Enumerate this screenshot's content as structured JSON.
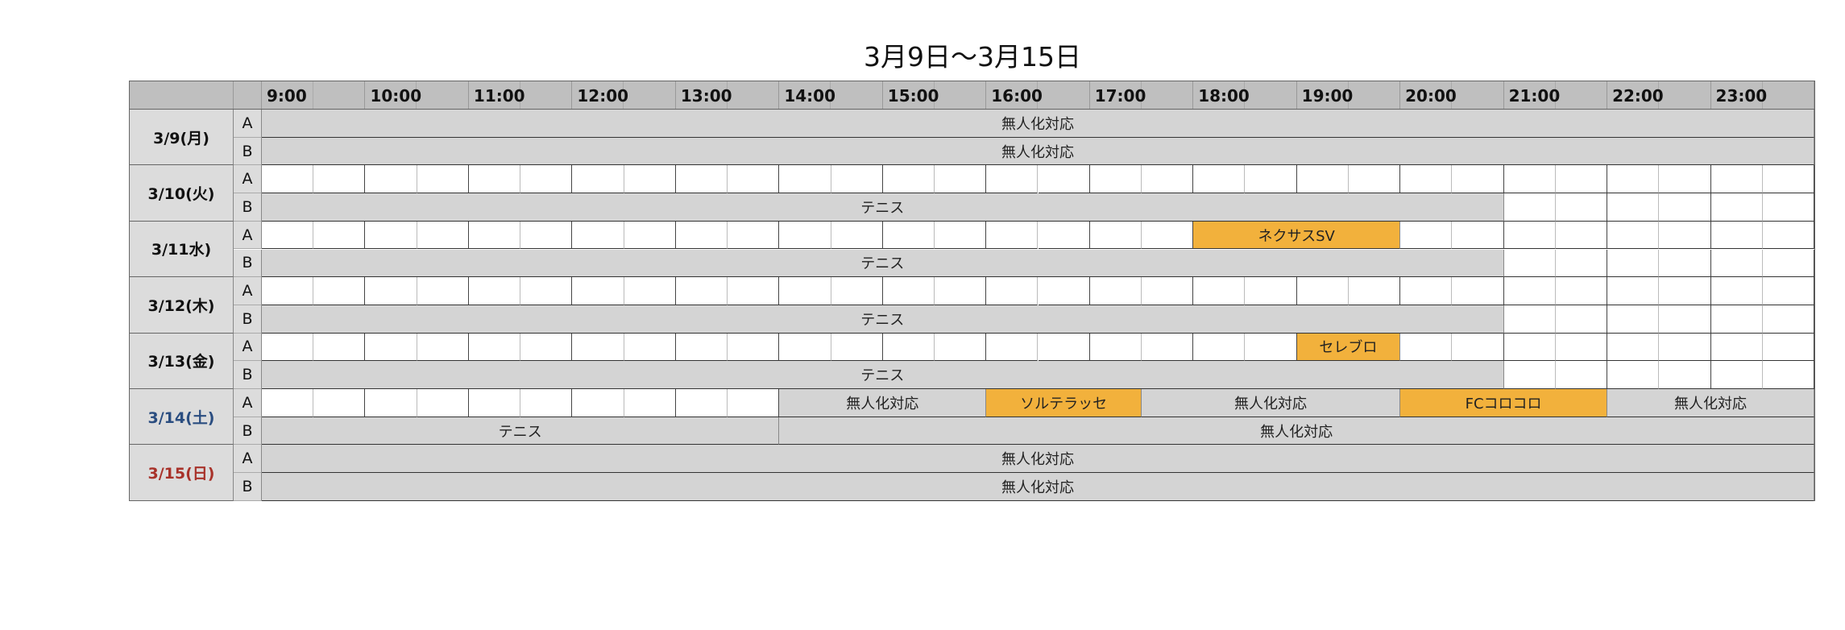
{
  "title": "3月9日〜3月15日",
  "colors": {
    "header": "#bfbfbf",
    "blocked": "#d4d4d4",
    "booking": "#f2b13c",
    "saturday": "#2a4d80",
    "sunday": "#a8322a"
  },
  "hours": [
    "9:00",
    "10:00",
    "11:00",
    "12:00",
    "13:00",
    "14:00",
    "15:00",
    "16:00",
    "17:00",
    "18:00",
    "19:00",
    "20:00",
    "21:00",
    "22:00",
    "23:00"
  ],
  "lanes": [
    "A",
    "B"
  ],
  "days": [
    {
      "label": "3/9(月)",
      "color": "default",
      "lanes": [
        [
          {
            "start": 9,
            "end": 24,
            "label": "無人化対応",
            "type": "blocked"
          }
        ],
        [
          {
            "start": 9,
            "end": 24,
            "label": "無人化対応",
            "type": "blocked"
          }
        ]
      ]
    },
    {
      "label": "3/10(火)",
      "color": "default",
      "lanes": [
        [],
        [
          {
            "start": 9,
            "end": 21,
            "label": "テニス",
            "type": "blocked"
          }
        ]
      ]
    },
    {
      "label": "3/11水)",
      "color": "default",
      "lanes": [
        [
          {
            "start": 18,
            "end": 20,
            "label": "ネクサスSV",
            "type": "booking"
          }
        ],
        [
          {
            "start": 9,
            "end": 21,
            "label": "テニス",
            "type": "blocked"
          }
        ]
      ]
    },
    {
      "label": "3/12(木)",
      "color": "default",
      "lanes": [
        [],
        [
          {
            "start": 9,
            "end": 21,
            "label": "テニス",
            "type": "blocked"
          }
        ]
      ]
    },
    {
      "label": "3/13(金)",
      "color": "default",
      "lanes": [
        [
          {
            "start": 19,
            "end": 20,
            "label": "セレブロ",
            "type": "booking"
          }
        ],
        [
          {
            "start": 9,
            "end": 21,
            "label": "テニス",
            "type": "blocked"
          }
        ]
      ]
    },
    {
      "label": "3/14(土)",
      "color": "saturday",
      "lanes": [
        [
          {
            "start": 14,
            "end": 16,
            "label": "無人化対応",
            "type": "blocked"
          },
          {
            "start": 16,
            "end": 17.5,
            "label": "ソルテラッセ",
            "type": "booking"
          },
          {
            "start": 17.5,
            "end": 20,
            "label": "無人化対応",
            "type": "blocked"
          },
          {
            "start": 20,
            "end": 22,
            "label": "FCコロコロ",
            "type": "booking"
          },
          {
            "start": 22,
            "end": 24,
            "label": "無人化対応",
            "type": "blocked"
          }
        ],
        [
          {
            "start": 9,
            "end": 14,
            "label": "テニス",
            "type": "blocked"
          },
          {
            "start": 14,
            "end": 24,
            "label": "無人化対応",
            "type": "blocked"
          }
        ]
      ]
    },
    {
      "label": "3/15(日)",
      "color": "sunday",
      "lanes": [
        [
          {
            "start": 9,
            "end": 24,
            "label": "無人化対応",
            "type": "blocked"
          }
        ],
        [
          {
            "start": 9,
            "end": 24,
            "label": "無人化対応",
            "type": "blocked"
          }
        ]
      ]
    }
  ]
}
